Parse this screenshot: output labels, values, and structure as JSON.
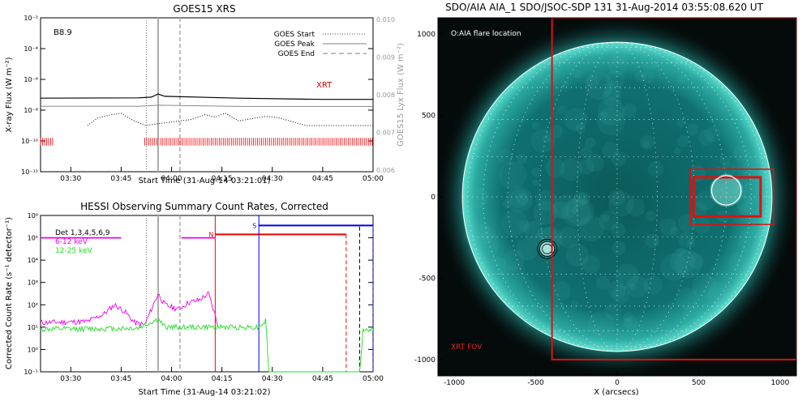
{
  "chart_data": [
    {
      "type": "line",
      "title": "GOES15 XRS",
      "xlabel": "Start Time (31-Aug-14 03:21:01)",
      "ylabel": "X-ray Flux (W m⁻²)",
      "ylabel_right": "GOES15 Lyx Flux (W m⁻²)",
      "x_ticks": [
        "03:30",
        "03:45",
        "04:00",
        "04:15",
        "04:30",
        "04:45",
        "05:00"
      ],
      "y_ticks": [
        "10⁻²",
        "10⁻⁴",
        "10⁻⁶",
        "10⁻⁸",
        "10⁻¹⁰",
        "10⁻¹²"
      ],
      "y_ticks_right": [
        "0.010",
        "0.009",
        "0.008",
        "0.007",
        "0.006"
      ],
      "ylim_log10": [
        -12,
        -2
      ],
      "xlim_minutes": [
        201,
        300
      ],
      "class_label": "B8.9",
      "annotation": "XRT",
      "legend": [
        {
          "label": "GOES Start",
          "style": "dotted",
          "color": "#888888"
        },
        {
          "label": "GOES Peak",
          "style": "solid",
          "color": "#aaaaaa"
        },
        {
          "label": "GOES End",
          "style": "dashed",
          "color": "#aaaaaa"
        }
      ],
      "events_minutes": {
        "start": 232.5,
        "peak": 236,
        "end": 242.5
      },
      "series": [
        {
          "name": "long channel",
          "color": "#000000",
          "log10_points": [
            [
              201,
              -7.22
            ],
            [
              230,
              -7.2
            ],
            [
              234,
              -7.15
            ],
            [
              236,
              -6.95
            ],
            [
              238,
              -7.1
            ],
            [
              260,
              -7.22
            ],
            [
              285,
              -7.3
            ],
            [
              300,
              -7.3
            ]
          ]
        },
        {
          "name": "Lyx",
          "color": "#888888",
          "log10_points": [
            [
              201,
              -7.75
            ],
            [
              230,
              -7.75
            ],
            [
              236,
              -7.68
            ],
            [
              260,
              -7.76
            ],
            [
              300,
              -7.76
            ]
          ]
        },
        {
          "name": "short channel",
          "color": "#000000",
          "log10_points": [
            [
              215,
              -9.0
            ],
            [
              218,
              -8.5
            ],
            [
              222,
              -8.3
            ],
            [
              225,
              -8.2
            ],
            [
              228,
              -8.6
            ],
            [
              232,
              -9.0
            ],
            [
              246,
              -8.6
            ],
            [
              250,
              -8.3
            ],
            [
              253,
              -8.45
            ],
            [
              256,
              -8.2
            ],
            [
              260,
              -8.7
            ],
            [
              268,
              -8.4
            ],
            [
              272,
              -8.5
            ],
            [
              280,
              -9.0
            ],
            [
              300,
              -9.0
            ]
          ]
        }
      ],
      "xrt_marks_minutes": [
        [
          201,
          205
        ],
        [
          232,
          300
        ]
      ]
    },
    {
      "type": "line",
      "title": "HESSI Observing Summary Count Rates, Corrected",
      "xlabel": "Start Time (31-Aug-14 03:21:02)",
      "ylabel": "Corrected Count Rate (s⁻¹ detector⁻¹)",
      "x_ticks": [
        "03:30",
        "03:45",
        "04:00",
        "04:15",
        "04:30",
        "04:45",
        "05:00"
      ],
      "y_ticks": [
        "10⁶",
        "10⁵",
        "10⁴",
        "10³",
        "10²",
        "10¹",
        "10⁰",
        "10⁻¹"
      ],
      "ylim_log10": [
        -1,
        6
      ],
      "xlim_minutes": [
        201,
        300
      ],
      "legend": [
        {
          "label": "Det 1,3,4,5,6,9",
          "color": "#000000"
        },
        {
          "label": "6-12 keV",
          "color": "#ee00ee"
        },
        {
          "label": "12-25 keV",
          "color": "#22dd22"
        }
      ],
      "flags": [
        {
          "label": "N",
          "color": "#ee0000",
          "start": 253,
          "end": 292
        },
        {
          "label": "S",
          "color": "#0000ee",
          "start": 266,
          "end": 300
        }
      ],
      "series": [
        {
          "name": "6-12 keV",
          "color": "#ee00ee",
          "log10_points": [
            [
              201,
              1.2
            ],
            [
              215,
              1.25
            ],
            [
              220,
              1.6
            ],
            [
              223,
              2.0
            ],
            [
              226,
              1.7
            ],
            [
              229,
              1.2
            ],
            [
              232,
              1.1
            ],
            [
              236,
              2.5
            ],
            [
              238,
              2.0
            ],
            [
              242,
              1.8
            ],
            [
              245,
              2.1
            ],
            [
              248,
              2.2
            ],
            [
              251,
              2.5
            ],
            [
              253,
              1.5
            ],
            [
              254,
              1.0
            ]
          ]
        },
        {
          "name": "12-25 keV",
          "color": "#22dd22",
          "log10_points": [
            [
              201,
              0.9
            ],
            [
              230,
              0.95
            ],
            [
              236,
              1.35
            ],
            [
              238,
              1.0
            ],
            [
              266,
              1.0
            ],
            [
              268,
              1.3
            ],
            [
              269,
              -1.0
            ],
            [
              296,
              -1.0
            ],
            [
              297,
              0.9
            ],
            [
              300,
              0.9
            ]
          ]
        },
        {
          "name": "6-12 keV upper",
          "color": "#ee00ee",
          "log10_points": [
            [
              201,
              5.0
            ],
            [
              225,
              5.0
            ]
          ]
        },
        {
          "name": "6-12 keV upper 2",
          "color": "#ee00ee",
          "log10_points": [
            [
              243,
              5.0
            ],
            [
              253,
              5.0
            ]
          ]
        }
      ]
    },
    {
      "type": "heatmap",
      "title": "SDO/AIA AIA_1 SDO/JSOC-SDP 131 31-Aug-2014 03:55:08.620 UT",
      "xlabel": "X (arcsecs)",
      "ylabel": "",
      "x_ticks": [
        "-1000",
        "-500",
        "0",
        "500",
        "1000"
      ],
      "y_ticks": [
        "1000",
        "500",
        "0",
        "-500",
        "-1000"
      ],
      "xlim": [
        -1100,
        1100
      ],
      "ylim": [
        -1100,
        1100
      ],
      "annotation_top": "O:AIA flare location",
      "annotation_bottom": "XRT FOV",
      "disk_radius_arcsec": 950,
      "xrt_fov": {
        "x0": -400,
        "x1": 1100,
        "y0": -1000,
        "y1": 1100
      },
      "boxes": [
        {
          "x0": 450,
          "x1": 960,
          "y0": 170,
          "y1": -170
        },
        {
          "x0": 470,
          "x1": 880,
          "y0": 120,
          "y1": -120
        }
      ],
      "flare_location": {
        "x": 670,
        "y": 40,
        "r": 90
      }
    }
  ]
}
